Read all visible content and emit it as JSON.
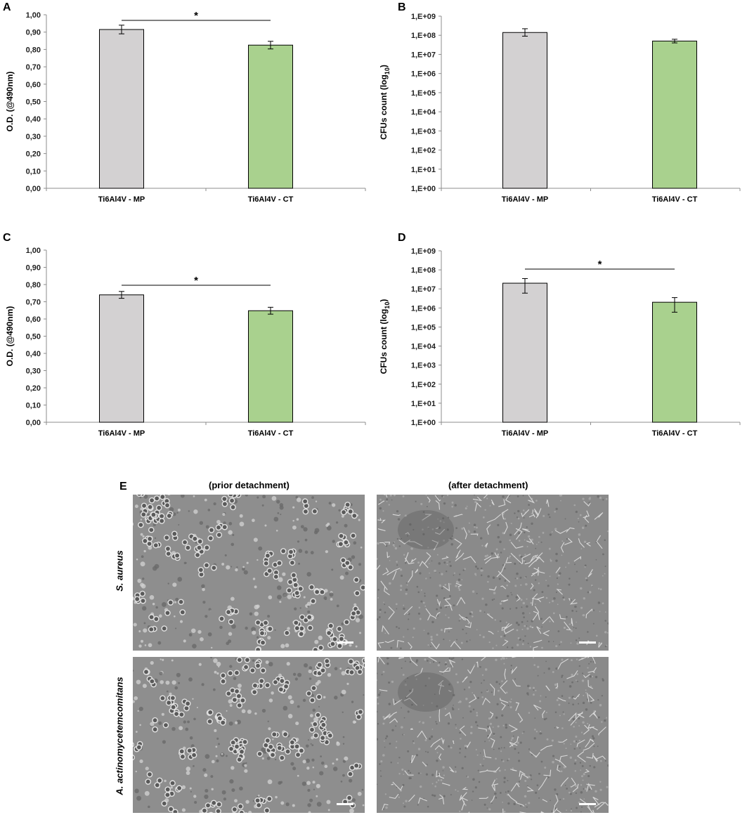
{
  "chart_data": [
    {
      "panel": "A",
      "type": "bar",
      "categories": [
        "Ti6Al4V - MP",
        "Ti6Al4V - CT"
      ],
      "values": [
        0.915,
        0.825
      ],
      "errors": [
        0.025,
        0.022
      ],
      "ylabel": "O.D. (@490nm)",
      "ylim": [
        0,
        1.0
      ],
      "yticks": [
        "0,00",
        "0,10",
        "0,20",
        "0,30",
        "0,40",
        "0,50",
        "0,60",
        "0,70",
        "0,80",
        "0,90",
        "1,00"
      ],
      "significance": "*",
      "colors": [
        "#d3d1d2",
        "#a9d18e"
      ]
    },
    {
      "panel": "B",
      "type": "bar",
      "scale": "log",
      "categories": [
        "Ti6Al4V - MP",
        "Ti6Al4V - CT"
      ],
      "values": [
        140000000,
        50000000
      ],
      "errors_upper": [
        220000000,
        62000000
      ],
      "errors_lower": [
        90000000,
        40000000
      ],
      "ylabel": "CFUs count (log10)",
      "ylabel_main": "CFUs count (log",
      "ylabel_sub": "10",
      "ylabel_close": ")",
      "ylim": [
        1,
        1000000000
      ],
      "yticks": [
        "1,E+00",
        "1,E+01",
        "1,E+02",
        "1,E+03",
        "1,E+04",
        "1,E+05",
        "1,E+06",
        "1,E+07",
        "1,E+08",
        "1,E+09"
      ],
      "significance": "",
      "colors": [
        "#d3d1d2",
        "#a9d18e"
      ]
    },
    {
      "panel": "C",
      "type": "bar",
      "categories": [
        "Ti6Al4V - MP",
        "Ti6Al4V - CT"
      ],
      "values": [
        0.74,
        0.648
      ],
      "errors": [
        0.02,
        0.02
      ],
      "ylabel": "O.D. (@490nm)",
      "ylim": [
        0,
        1.0
      ],
      "yticks": [
        "0,00",
        "0,10",
        "0,20",
        "0,30",
        "0,40",
        "0,50",
        "0,60",
        "0,70",
        "0,80",
        "0,90",
        "1,00"
      ],
      "significance": "*",
      "colors": [
        "#d3d1d2",
        "#a9d18e"
      ]
    },
    {
      "panel": "D",
      "type": "bar",
      "scale": "log",
      "categories": [
        "Ti6Al4V - MP",
        "Ti6Al4V - CT"
      ],
      "values": [
        20000000,
        2000000
      ],
      "errors_upper": [
        35000000,
        3500000
      ],
      "errors_lower": [
        6000000,
        600000
      ],
      "ylabel": "CFUs count (log10)",
      "ylabel_main": "CFUs count (log",
      "ylabel_sub": "10",
      "ylabel_close": ")",
      "ylim": [
        1,
        1000000000
      ],
      "yticks": [
        "1,E+00",
        "1,E+01",
        "1,E+02",
        "1,E+03",
        "1,E+04",
        "1,E+05",
        "1,E+06",
        "1,E+07",
        "1,E+08",
        "1,E+09"
      ],
      "significance": "*",
      "colors": [
        "#d3d1d2",
        "#a9d18e"
      ]
    }
  ],
  "panels": {
    "a": "A",
    "b": "B",
    "c": "C",
    "d": "D",
    "e": "E"
  },
  "sem": {
    "col_prior": "(prior detachment)",
    "col_after": "(after detachment)",
    "row_1": "S. aureus",
    "row_2": "A. actinomycetemcomitans"
  }
}
